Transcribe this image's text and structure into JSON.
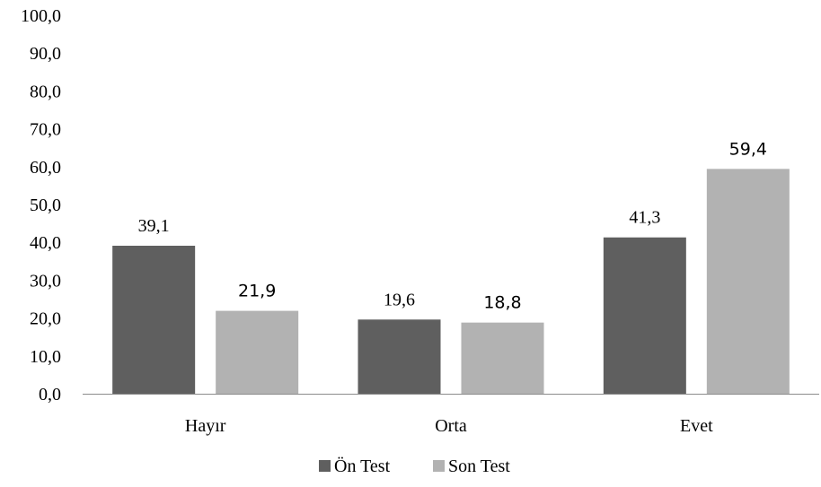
{
  "chart_data": {
    "type": "bar",
    "categories": [
      "Hayır",
      "Orta",
      "Evet"
    ],
    "series": [
      {
        "name": "Ön Test",
        "values": [
          39.1,
          19.6,
          41.3
        ],
        "labels": [
          "39,1",
          "19,6",
          "41,3"
        ],
        "color": "#5f5f5f"
      },
      {
        "name": "Son Test",
        "values": [
          21.9,
          18.8,
          59.4
        ],
        "labels": [
          "21,9",
          "18,8",
          "59,4"
        ],
        "color": "#b2b2b2"
      }
    ],
    "ylim": [
      0,
      100
    ],
    "yticks": [
      "0,0",
      "10,0",
      "20,0",
      "30,0",
      "40,0",
      "50,0",
      "60,0",
      "70,0",
      "80,0",
      "90,0",
      "100,0"
    ],
    "legend_position": "bottom",
    "grid": false
  }
}
